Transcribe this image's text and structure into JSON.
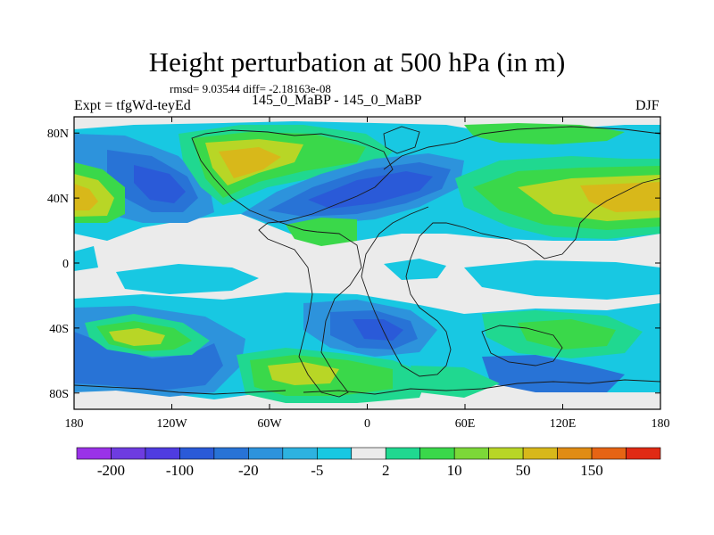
{
  "chart_data": {
    "type": "heatmap",
    "title": "Height perturbation at 500 hPa (in m)",
    "stats_line": "rmsd= 9.03544 diff= -2.18163e-08",
    "left_label": "Expt = tfgWd-teyEd",
    "center_label": "145_0_MaBP - 145_0_MaBP",
    "right_label": "DJF",
    "x_ticks": [
      {
        "value": -180,
        "label": "180"
      },
      {
        "value": -120,
        "label": "120W"
      },
      {
        "value": -60,
        "label": "60W"
      },
      {
        "value": 0,
        "label": "0"
      },
      {
        "value": 60,
        "label": "60E"
      },
      {
        "value": 120,
        "label": "120E"
      },
      {
        "value": 180,
        "label": "180"
      }
    ],
    "y_ticks": [
      {
        "value": 80,
        "label": "80N"
      },
      {
        "value": 40,
        "label": "40N"
      },
      {
        "value": 0,
        "label": "0"
      },
      {
        "value": -40,
        "label": "40S"
      },
      {
        "value": -80,
        "label": "80S"
      }
    ],
    "xlim": [
      -180,
      180
    ],
    "ylim": [
      -90,
      90
    ],
    "colorbar": {
      "levels": [
        -200,
        -150,
        -100,
        -50,
        -20,
        -10,
        -5,
        -2,
        2,
        5,
        10,
        20,
        50,
        100,
        150,
        200
      ],
      "labels": [
        "-200",
        "-100",
        "-20",
        "-5",
        "2",
        "10",
        "50",
        "150"
      ],
      "colors": [
        "#9a32e8",
        "#6e3ce0",
        "#4f3ce0",
        "#2a5ad8",
        "#2873d6",
        "#2d93dc",
        "#2db2e0",
        "#18c8e2",
        "#ebebeb",
        "#20d890",
        "#3ad84a",
        "#7cd838",
        "#b8d626",
        "#d8b81a",
        "#e08c14",
        "#e66414",
        "#e02a14"
      ]
    },
    "features": [
      {
        "name": "south-pacific-high",
        "lon": -150,
        "lat": -42,
        "value": 50
      },
      {
        "name": "south-atlantic-high",
        "lon": -40,
        "lat": -62,
        "value": 50
      },
      {
        "name": "indian-ocean-high",
        "lon": 105,
        "lat": -42,
        "value": 20
      },
      {
        "name": "north-america-high",
        "lon": -80,
        "lat": 50,
        "value": 50
      },
      {
        "name": "eurasia-high",
        "lon": 130,
        "lat": 42,
        "value": 50
      },
      {
        "name": "north-pacific-high",
        "lon": -170,
        "lat": 38,
        "value": 50
      },
      {
        "name": "north-atlantic-low",
        "lon": 10,
        "lat": 52,
        "value": -50
      },
      {
        "name": "pacific-low",
        "lon": -135,
        "lat": 45,
        "value": -50
      }
    ]
  }
}
